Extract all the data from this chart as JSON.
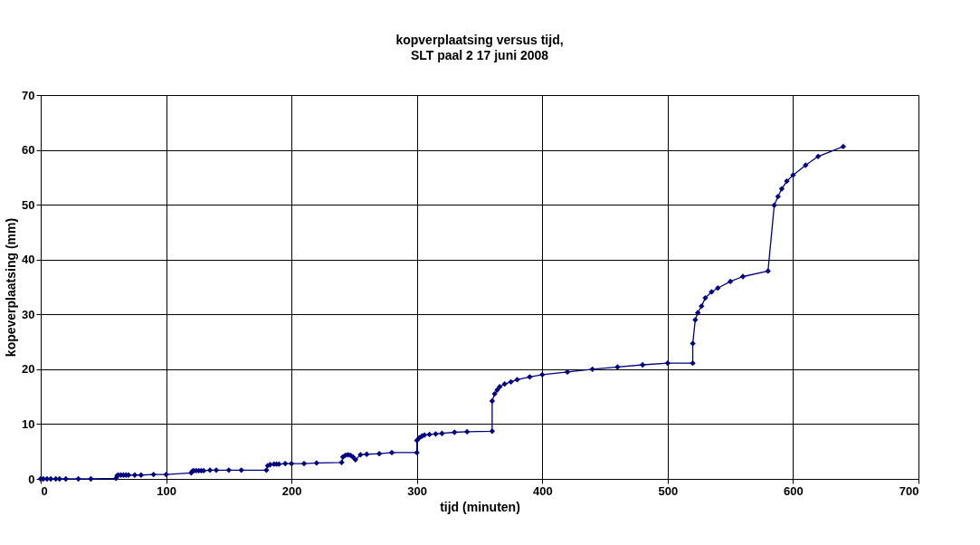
{
  "chart_data": {
    "type": "line",
    "title": "kopverplaatsing versus tijd,",
    "subtitle": "SLT paal 2 17 juni 2008",
    "xlabel": "tijd (minuten)",
    "ylabel": "kopeverplaatsing (mm)",
    "xlim": [
      0,
      700
    ],
    "xticks": [
      0,
      100,
      200,
      300,
      400,
      500,
      600,
      700
    ],
    "ylim": [
      0,
      70
    ],
    "yticks": [
      0,
      10,
      20,
      30,
      40,
      50,
      60,
      70
    ],
    "grid": true,
    "marker": "diamond",
    "line_style": "solid",
    "series": [
      {
        "color": "#000080",
        "x": [
          0,
          2,
          5,
          8,
          12,
          15,
          20,
          30,
          40,
          60,
          61,
          62,
          64,
          66,
          68,
          70,
          75,
          80,
          90,
          100,
          120,
          121,
          122,
          124,
          126,
          128,
          130,
          135,
          140,
          150,
          160,
          180,
          181,
          183,
          186,
          188,
          190,
          195,
          200,
          210,
          220,
          240,
          241,
          243,
          245,
          247,
          249,
          251,
          255,
          260,
          270,
          280,
          300,
          300,
          302,
          304,
          306,
          310,
          315,
          320,
          330,
          340,
          360,
          360,
          362,
          364,
          366,
          370,
          375,
          380,
          390,
          400,
          420,
          440,
          460,
          480,
          500,
          520,
          520,
          522,
          524,
          527,
          530,
          535,
          540,
          550,
          560,
          580,
          585,
          588,
          591,
          595,
          600,
          610,
          620,
          640
        ],
        "values": [
          0,
          0,
          0,
          0,
          0,
          0,
          0,
          0,
          0,
          0.1,
          0.6,
          0.7,
          0.7,
          0.7,
          0.7,
          0.7,
          0.7,
          0.7,
          0.8,
          0.8,
          1.1,
          1.4,
          1.5,
          1.5,
          1.5,
          1.5,
          1.5,
          1.6,
          1.6,
          1.6,
          1.6,
          1.6,
          2.4,
          2.6,
          2.7,
          2.7,
          2.7,
          2.8,
          2.8,
          2.8,
          2.9,
          3.0,
          4.0,
          4.3,
          4.4,
          4.3,
          4.0,
          3.5,
          4.4,
          4.5,
          4.6,
          4.8,
          4.8,
          7.0,
          7.5,
          7.8,
          8.0,
          8.1,
          8.2,
          8.3,
          8.5,
          8.6,
          8.7,
          14.2,
          15.5,
          16.2,
          16.8,
          17.3,
          17.7,
          18.1,
          18.6,
          19.0,
          19.5,
          20.0,
          20.4,
          20.8,
          21.1,
          21.1,
          24.7,
          29.0,
          30.3,
          31.5,
          33.0,
          34.1,
          34.8,
          36.0,
          36.9,
          37.9,
          49.9,
          51.5,
          52.9,
          54.3,
          55.4,
          57.2,
          58.8,
          60.6
        ]
      }
    ]
  }
}
